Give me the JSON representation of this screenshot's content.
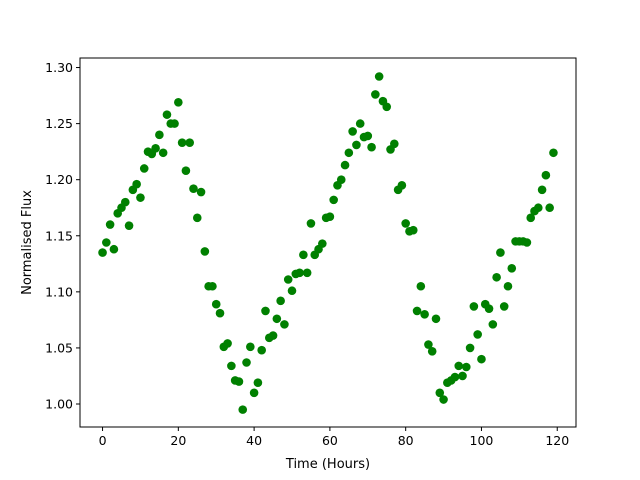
{
  "chart_data": {
    "type": "scatter",
    "title": "",
    "xlabel": "Time (Hours)",
    "ylabel": "Normalised Flux",
    "xlim": [
      -5.95,
      124.95
    ],
    "ylim": [
      0.9795,
      1.3085
    ],
    "xticks": [
      0,
      20,
      40,
      60,
      80,
      100,
      120
    ],
    "xtick_labels": [
      "0",
      "20",
      "40",
      "60",
      "80",
      "100",
      "120"
    ],
    "yticks": [
      1.0,
      1.05,
      1.1,
      1.15,
      1.2,
      1.25,
      1.3
    ],
    "ytick_labels": [
      "1.00",
      "1.05",
      "1.10",
      "1.15",
      "1.20",
      "1.25",
      "1.30"
    ],
    "grid": false,
    "marker_color": "#008000",
    "series": [
      {
        "points": [
          [
            0,
            1.135
          ],
          [
            1,
            1.144
          ],
          [
            2,
            1.16
          ],
          [
            3,
            1.138
          ],
          [
            4,
            1.17
          ],
          [
            5,
            1.175
          ],
          [
            6,
            1.18
          ],
          [
            7,
            1.159
          ],
          [
            8,
            1.191
          ],
          [
            9,
            1.196
          ],
          [
            10,
            1.184
          ],
          [
            11,
            1.21
          ],
          [
            12,
            1.225
          ],
          [
            13,
            1.223
          ],
          [
            14,
            1.228
          ],
          [
            15,
            1.24
          ],
          [
            16,
            1.224
          ],
          [
            17,
            1.258
          ],
          [
            18,
            1.25
          ],
          [
            19,
            1.25
          ],
          [
            20,
            1.269
          ],
          [
            21,
            1.233
          ],
          [
            22,
            1.208
          ],
          [
            23,
            1.233
          ],
          [
            24,
            1.192
          ],
          [
            25,
            1.166
          ],
          [
            26,
            1.189
          ],
          [
            27,
            1.136
          ],
          [
            28,
            1.105
          ],
          [
            29,
            1.105
          ],
          [
            30,
            1.089
          ],
          [
            31,
            1.081
          ],
          [
            32,
            1.051
          ],
          [
            33,
            1.054
          ],
          [
            34,
            1.034
          ],
          [
            35,
            1.021
          ],
          [
            36,
            1.02
          ],
          [
            37,
            0.995
          ],
          [
            38,
            1.037
          ],
          [
            39,
            1.051
          ],
          [
            40,
            1.01
          ],
          [
            41,
            1.019
          ],
          [
            42,
            1.048
          ],
          [
            43,
            1.083
          ],
          [
            44,
            1.059
          ],
          [
            45,
            1.061
          ],
          [
            46,
            1.076
          ],
          [
            47,
            1.092
          ],
          [
            48,
            1.071
          ],
          [
            49,
            1.111
          ],
          [
            50,
            1.101
          ],
          [
            51,
            1.116
          ],
          [
            52,
            1.117
          ],
          [
            53,
            1.133
          ],
          [
            54,
            1.117
          ],
          [
            55,
            1.161
          ],
          [
            56,
            1.133
          ],
          [
            57,
            1.138
          ],
          [
            58,
            1.143
          ],
          [
            59,
            1.166
          ],
          [
            60,
            1.167
          ],
          [
            61,
            1.182
          ],
          [
            62,
            1.195
          ],
          [
            63,
            1.2
          ],
          [
            64,
            1.213
          ],
          [
            65,
            1.224
          ],
          [
            66,
            1.243
          ],
          [
            67,
            1.231
          ],
          [
            68,
            1.25
          ],
          [
            69,
            1.238
          ],
          [
            70,
            1.239
          ],
          [
            71,
            1.229
          ],
          [
            72,
            1.276
          ],
          [
            73,
            1.292
          ],
          [
            74,
            1.27
          ],
          [
            75,
            1.265
          ],
          [
            76,
            1.227
          ],
          [
            77,
            1.232
          ],
          [
            78,
            1.191
          ],
          [
            79,
            1.195
          ],
          [
            80,
            1.161
          ],
          [
            81,
            1.154
          ],
          [
            82,
            1.155
          ],
          [
            83,
            1.083
          ],
          [
            84,
            1.105
          ],
          [
            85,
            1.08
          ],
          [
            86,
            1.053
          ],
          [
            87,
            1.047
          ],
          [
            88,
            1.076
          ],
          [
            89,
            1.01
          ],
          [
            90,
            1.004
          ],
          [
            91,
            1.019
          ],
          [
            92,
            1.021
          ],
          [
            93,
            1.024
          ],
          [
            94,
            1.034
          ],
          [
            95,
            1.025
          ],
          [
            96,
            1.033
          ],
          [
            97,
            1.05
          ],
          [
            98,
            1.087
          ],
          [
            99,
            1.062
          ],
          [
            100,
            1.04
          ],
          [
            101,
            1.089
          ],
          [
            102,
            1.085
          ],
          [
            103,
            1.071
          ],
          [
            104,
            1.113
          ],
          [
            105,
            1.135
          ],
          [
            106,
            1.087
          ],
          [
            107,
            1.105
          ],
          [
            108,
            1.121
          ],
          [
            109,
            1.145
          ],
          [
            110,
            1.145
          ],
          [
            111,
            1.145
          ],
          [
            112,
            1.144
          ],
          [
            113,
            1.166
          ],
          [
            114,
            1.172
          ],
          [
            115,
            1.175
          ],
          [
            116,
            1.191
          ],
          [
            117,
            1.204
          ],
          [
            118,
            1.175
          ],
          [
            119,
            1.224
          ]
        ]
      }
    ]
  }
}
